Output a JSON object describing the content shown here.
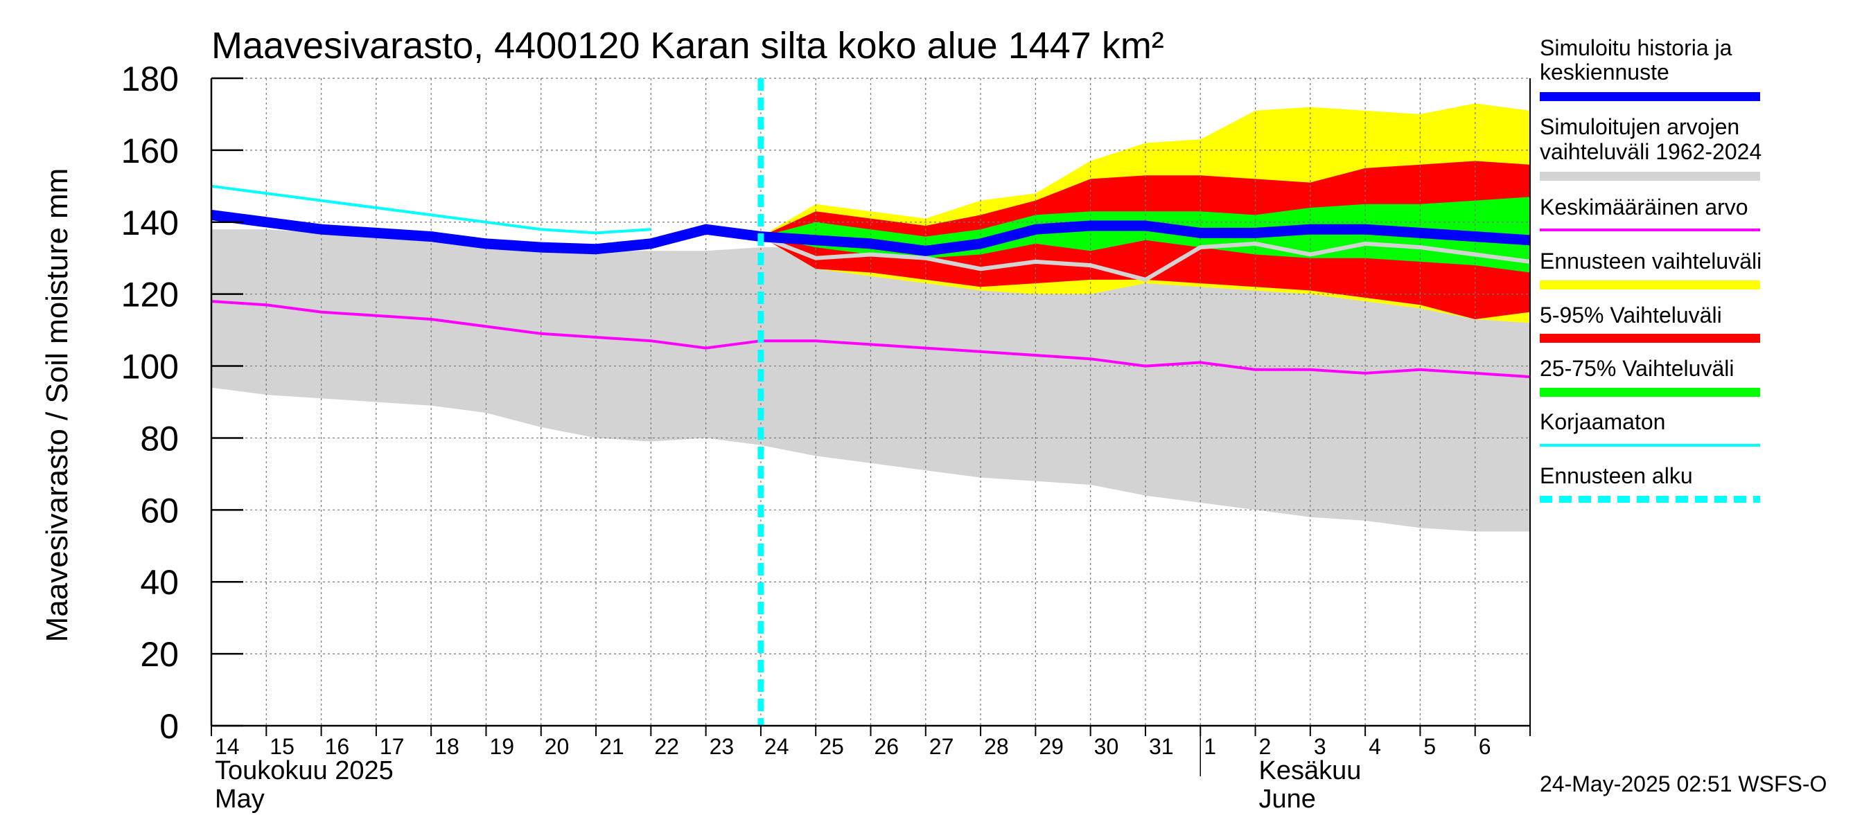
{
  "chart_data": {
    "type": "area",
    "title": "Maavesivarasto, 4400120 Karan silta koko alue 1447 km²",
    "ylabel": "Maavesivarasto / Soil moisture   mm",
    "ylim": [
      0,
      180
    ],
    "yticks": [
      0,
      20,
      40,
      60,
      80,
      100,
      120,
      140,
      160,
      180
    ],
    "grid": true,
    "x_tick_labels": [
      "14",
      "15",
      "16",
      "17",
      "18",
      "19",
      "20",
      "21",
      "22",
      "23",
      "24",
      "25",
      "26",
      "27",
      "28",
      "29",
      "30",
      "31",
      "1",
      "2",
      "3",
      "4",
      "5",
      "6"
    ],
    "month_labels": [
      {
        "fi": "Toukokuu  2025",
        "en": "May",
        "at_day": 0
      },
      {
        "fi": "Kesäkuu",
        "en": "June",
        "at_day": 19
      }
    ],
    "forecast_start_day": 10.0,
    "x_day_range": [
      0,
      24
    ],
    "series": {
      "range_1962_2024": {
        "x": [
          0,
          1,
          2,
          3,
          4,
          5,
          6,
          7,
          8,
          9,
          10,
          11,
          12,
          13,
          14,
          15,
          16,
          17,
          18,
          19,
          20,
          21,
          22,
          23,
          24
        ],
        "lower": [
          94,
          92,
          91,
          90,
          89,
          87,
          83,
          80,
          79,
          80,
          78,
          75,
          73,
          71,
          69,
          68,
          67,
          64,
          62,
          60,
          58,
          57,
          55,
          54,
          54
        ],
        "upper": [
          138,
          138,
          137,
          136,
          135,
          134,
          133,
          132,
          132,
          132,
          133,
          133,
          133,
          132,
          130,
          128,
          127,
          126,
          125,
          124,
          122,
          120,
          116,
          113,
          112
        ]
      },
      "forecast_range": {
        "x": [
          10,
          11,
          12,
          13,
          14,
          15,
          16,
          17,
          18,
          19,
          20,
          21,
          22,
          23,
          24
        ],
        "lower": [
          136,
          127,
          125,
          123,
          121,
          120,
          120,
          123,
          122,
          121,
          120,
          118,
          116,
          113,
          112
        ],
        "upper": [
          136,
          145,
          143,
          141,
          146,
          148,
          157,
          162,
          163,
          171,
          172,
          171,
          170,
          173,
          171
        ]
      },
      "p5_95": {
        "x": [
          10,
          11,
          12,
          13,
          14,
          15,
          16,
          17,
          18,
          19,
          20,
          21,
          22,
          23,
          24
        ],
        "lower": [
          136,
          127,
          126,
          124,
          122,
          123,
          124,
          124,
          123,
          122,
          121,
          119,
          117,
          113,
          115
        ],
        "upper": [
          136,
          143,
          141,
          139,
          142,
          146,
          152,
          153,
          153,
          152,
          151,
          155,
          156,
          157,
          156
        ]
      },
      "p25_75": {
        "x": [
          10,
          11,
          12,
          13,
          14,
          15,
          16,
          17,
          18,
          19,
          20,
          21,
          22,
          23,
          24
        ],
        "lower": [
          136,
          133,
          131,
          130,
          131,
          134,
          132,
          135,
          133,
          131,
          130,
          130,
          129,
          128,
          126
        ],
        "upper": [
          136,
          140,
          138,
          136,
          138,
          142,
          143,
          143,
          143,
          142,
          144,
          145,
          145,
          146,
          147
        ]
      },
      "mean": {
        "x": [
          0,
          1,
          2,
          3,
          4,
          5,
          6,
          7,
          8,
          9,
          10,
          11,
          12,
          13,
          14,
          15,
          16,
          17,
          18,
          19,
          20,
          21,
          22,
          23,
          24
        ],
        "values": [
          118,
          117,
          115,
          114,
          113,
          111,
          109,
          108,
          107,
          105,
          107,
          107,
          106,
          105,
          104,
          103,
          102,
          100,
          101,
          99,
          99,
          98,
          99,
          98,
          97
        ]
      },
      "uncorrected": {
        "x": [
          0,
          1,
          2,
          3,
          4,
          5,
          6,
          7,
          8
        ],
        "values": [
          150,
          148,
          146,
          144,
          142,
          140,
          138,
          137,
          138
        ]
      },
      "history_forecast": {
        "x": [
          0,
          1,
          2,
          3,
          4,
          5,
          6,
          7,
          8,
          9,
          10,
          11,
          12,
          13,
          14,
          15,
          16,
          17,
          18,
          19,
          20,
          21,
          22,
          23,
          24
        ],
        "values": [
          142,
          140,
          138,
          137,
          136,
          134,
          133,
          132.5,
          134,
          138,
          136,
          135,
          134,
          132,
          134,
          138,
          139,
          139,
          137,
          137,
          138,
          138,
          137,
          136,
          135
        ]
      },
      "forecast_median_gray": {
        "x": [
          10,
          11,
          12,
          13,
          14,
          15,
          16,
          17,
          18,
          19,
          20,
          21,
          22,
          23,
          24
        ],
        "values": [
          136,
          130,
          131,
          130,
          127,
          129,
          128,
          124,
          133,
          134,
          131,
          134,
          133,
          131,
          129
        ]
      }
    },
    "legend": [
      {
        "label": "Simuloitu historia ja keskiennuste",
        "color": "#0000ff",
        "style": "thick"
      },
      {
        "label": "Simuloitujen arvojen vaihteluväli 1962-2024",
        "color": "#d3d3d3",
        "style": "band"
      },
      {
        "label": "Keskimääräinen arvo",
        "color": "#ff00ff",
        "style": "line"
      },
      {
        "label": "Ennusteen vaihteluväli",
        "color": "#ffff00",
        "style": "band"
      },
      {
        "label": "5-95% Vaihteluväli",
        "color": "#ff0000",
        "style": "band"
      },
      {
        "label": "25-75% Vaihteluväli",
        "color": "#00ff00",
        "style": "band"
      },
      {
        "label": "Korjaamaton",
        "color": "#00ffff",
        "style": "line"
      },
      {
        "label": "Ennusteen alku",
        "color": "#00ffff",
        "style": "dashed"
      }
    ],
    "footer": "24-May-2025 02:51 WSFS-O"
  }
}
